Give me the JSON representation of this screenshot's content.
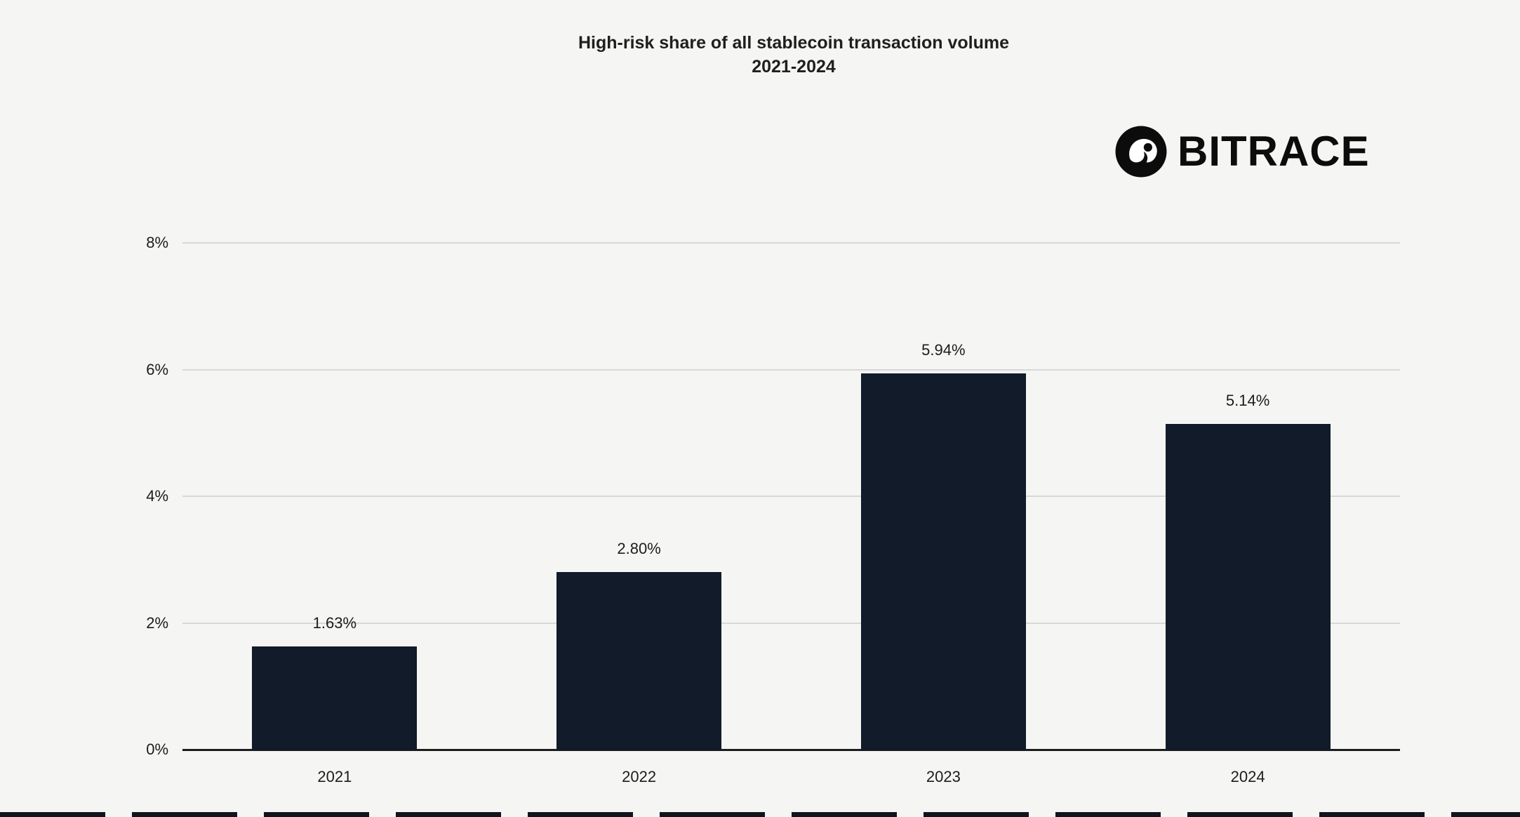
{
  "title": {
    "line1": "High-risk share of all stablecoin transaction volume",
    "line2": "2021-2024"
  },
  "logo": {
    "brand": "BITRACE"
  },
  "chart_data": {
    "type": "bar",
    "title": "High-risk share of all stablecoin transaction volume 2021-2024",
    "categories": [
      "2021",
      "2022",
      "2023",
      "2024"
    ],
    "values": [
      1.63,
      2.8,
      5.94,
      5.14
    ],
    "value_labels": [
      "1.63%",
      "2.80%",
      "5.94%",
      "5.14%"
    ],
    "xlabel": "",
    "ylabel": "",
    "ylim": [
      0,
      8
    ],
    "ytick_values": [
      0,
      2,
      4,
      6,
      8
    ],
    "yticks": [
      "0%",
      "2%",
      "4%",
      "6%",
      "8%"
    ],
    "grid": true,
    "legend": "none",
    "bar_color": "#111b29",
    "background_color": "#f5f5f4",
    "gridline_color": "#d8d8d8",
    "axis_line_color": "#1c1c1c"
  }
}
